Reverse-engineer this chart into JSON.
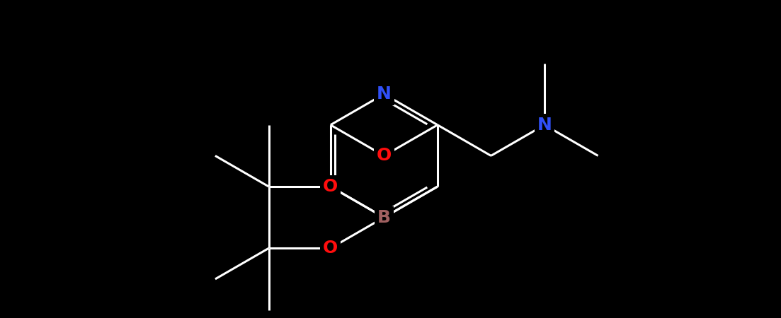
{
  "bg_color": "#000000",
  "atom_colors": {
    "N": "#3050f8",
    "O": "#ff0d0d",
    "B": "#a06060"
  },
  "bond_color": "#ffffff",
  "font_size_atom": 18,
  "figsize": [
    11.03,
    4.5
  ],
  "dpi": 100,
  "lw": 2.2
}
